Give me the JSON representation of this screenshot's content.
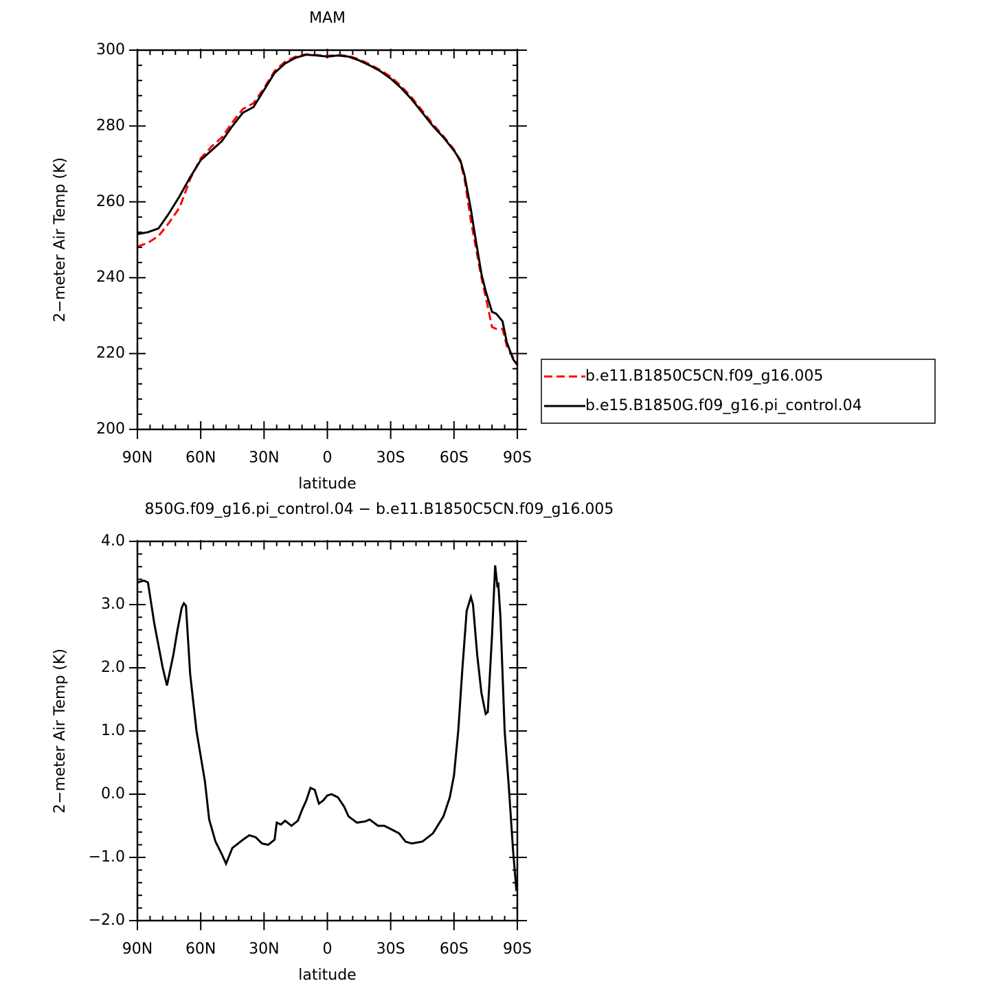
{
  "chart_data": [
    {
      "type": "line",
      "title": "MAM",
      "xlabel": "latitude",
      "ylabel": "2−meter Air Temp (K)",
      "xlim": [
        90,
        -90
      ],
      "xticks": [
        {
          "value": 90,
          "label": "90N"
        },
        {
          "value": 60,
          "label": "60N"
        },
        {
          "value": 30,
          "label": "30N"
        },
        0,
        {
          "value": -30,
          "label": "30S"
        },
        {
          "value": -60,
          "label": "60S"
        },
        {
          "value": -90,
          "label": "90S"
        }
      ],
      "ylim": [
        200,
        300
      ],
      "yticks": [
        200,
        220,
        240,
        260,
        280,
        300
      ],
      "legend": "right",
      "x": [
        90,
        85,
        80,
        75,
        70,
        65,
        60,
        55,
        50,
        45,
        40,
        35,
        30,
        25,
        20,
        15,
        10,
        5,
        0,
        -5,
        -10,
        -15,
        -20,
        -25,
        -30,
        -35,
        -40,
        -45,
        -50,
        -55,
        -60,
        -63,
        -65,
        -68,
        -70,
        -73,
        -75,
        -78,
        -80,
        -83,
        -85,
        -88,
        -90
      ],
      "series": [
        {
          "name": "b.e11.B1850C5CN.f09_g16.005",
          "color": "#ff0000",
          "line_style": "dashed",
          "values": [
            248.2,
            249.2,
            251,
            254.5,
            258.5,
            266,
            271.5,
            274.5,
            277,
            281,
            284.5,
            286,
            290,
            294.5,
            297,
            298.3,
            298.9,
            298.7,
            298.5,
            298.7,
            298.5,
            297.6,
            296.3,
            294.8,
            293,
            290.5,
            287.5,
            284,
            280.5,
            277.3,
            273.8,
            270.5,
            266,
            255,
            249,
            240,
            235,
            227,
            226.5,
            226.5,
            222,
            219,
            217
          ]
        },
        {
          "name": "b.e15.B1850G.f09_g16.pi_control.04",
          "color": "#000000",
          "line_style": "solid",
          "values": [
            251.5,
            252,
            253,
            257,
            261.5,
            266.5,
            271,
            273.5,
            276,
            280,
            283.5,
            285,
            289.5,
            294,
            296.5,
            298,
            298.8,
            298.6,
            298.3,
            298.6,
            298.3,
            297.3,
            296,
            294.5,
            292.5,
            290,
            287,
            283.5,
            280,
            277,
            273.5,
            271,
            267,
            258,
            251,
            241,
            236.5,
            231,
            230.5,
            228.5,
            223,
            218.5,
            217
          ]
        }
      ]
    },
    {
      "type": "line",
      "title": "850G.f09_g16.pi_control.04 − b.e11.B1850C5CN.f09_g16.005",
      "xlabel": "latitude",
      "ylabel": "2−meter Air Temp (K)",
      "xlim": [
        90,
        -90
      ],
      "xticks": [
        {
          "value": 90,
          "label": "90N"
        },
        {
          "value": 60,
          "label": "60N"
        },
        {
          "value": 30,
          "label": "30N"
        },
        0,
        {
          "value": -30,
          "label": "30S"
        },
        {
          "value": -60,
          "label": "60S"
        },
        {
          "value": -90,
          "label": "90S"
        }
      ],
      "ylim": [
        -2,
        4
      ],
      "yticks": [
        {
          "value": -2,
          "label": "−2.0"
        },
        {
          "value": -1,
          "label": "−1.0"
        },
        {
          "value": 0,
          "label": "0.0"
        },
        {
          "value": 1,
          "label": "1.0"
        },
        {
          "value": 2,
          "label": "2.0"
        },
        {
          "value": 3,
          "label": "3.0"
        },
        {
          "value": 4,
          "label": "4.0"
        }
      ],
      "x": [
        90,
        87,
        85,
        82,
        80,
        78,
        76,
        73,
        71,
        69,
        68,
        67,
        65,
        62,
        58,
        56,
        53,
        50,
        48,
        45,
        43,
        40,
        37,
        34,
        31,
        28,
        25,
        24,
        22,
        20,
        17,
        14,
        12,
        10,
        8,
        6,
        4,
        2,
        0,
        -2,
        -5,
        -8,
        -10,
        -14,
        -18,
        -20,
        -24,
        -27,
        -30,
        -34,
        -37,
        -40,
        -45,
        -50,
        -55,
        -58,
        -60,
        -62,
        -64,
        -66,
        -68,
        -69,
        -71,
        -73,
        -75,
        -76,
        -78,
        -79.5,
        -80.5,
        -81,
        -82,
        -84,
        -86,
        -88,
        -89.5,
        -90
      ],
      "series": [
        {
          "color": "#000000",
          "line_style": "solid",
          "values": [
            3.35,
            3.38,
            3.35,
            2.7,
            2.35,
            2.0,
            1.72,
            2.2,
            2.6,
            2.95,
            3.02,
            2.98,
            1.9,
            1.0,
            0.2,
            -0.4,
            -0.75,
            -0.95,
            -1.1,
            -0.85,
            -0.8,
            -0.72,
            -0.65,
            -0.68,
            -0.78,
            -0.8,
            -0.72,
            -0.45,
            -0.48,
            -0.42,
            -0.5,
            -0.42,
            -0.25,
            -0.1,
            0.1,
            0.07,
            -0.15,
            -0.1,
            -0.02,
            0,
            -0.05,
            -0.2,
            -0.35,
            -0.45,
            -0.43,
            -0.4,
            -0.5,
            -0.5,
            -0.55,
            -0.62,
            -0.75,
            -0.78,
            -0.75,
            -0.62,
            -0.35,
            -0.05,
            0.3,
            1.0,
            2.0,
            2.9,
            3.12,
            3.0,
            2.2,
            1.6,
            1.27,
            1.3,
            2.5,
            3.62,
            3.3,
            3.32,
            2.8,
            1.0,
            0.1,
            -0.9,
            -1.5,
            -1.48
          ]
        }
      ]
    }
  ]
}
